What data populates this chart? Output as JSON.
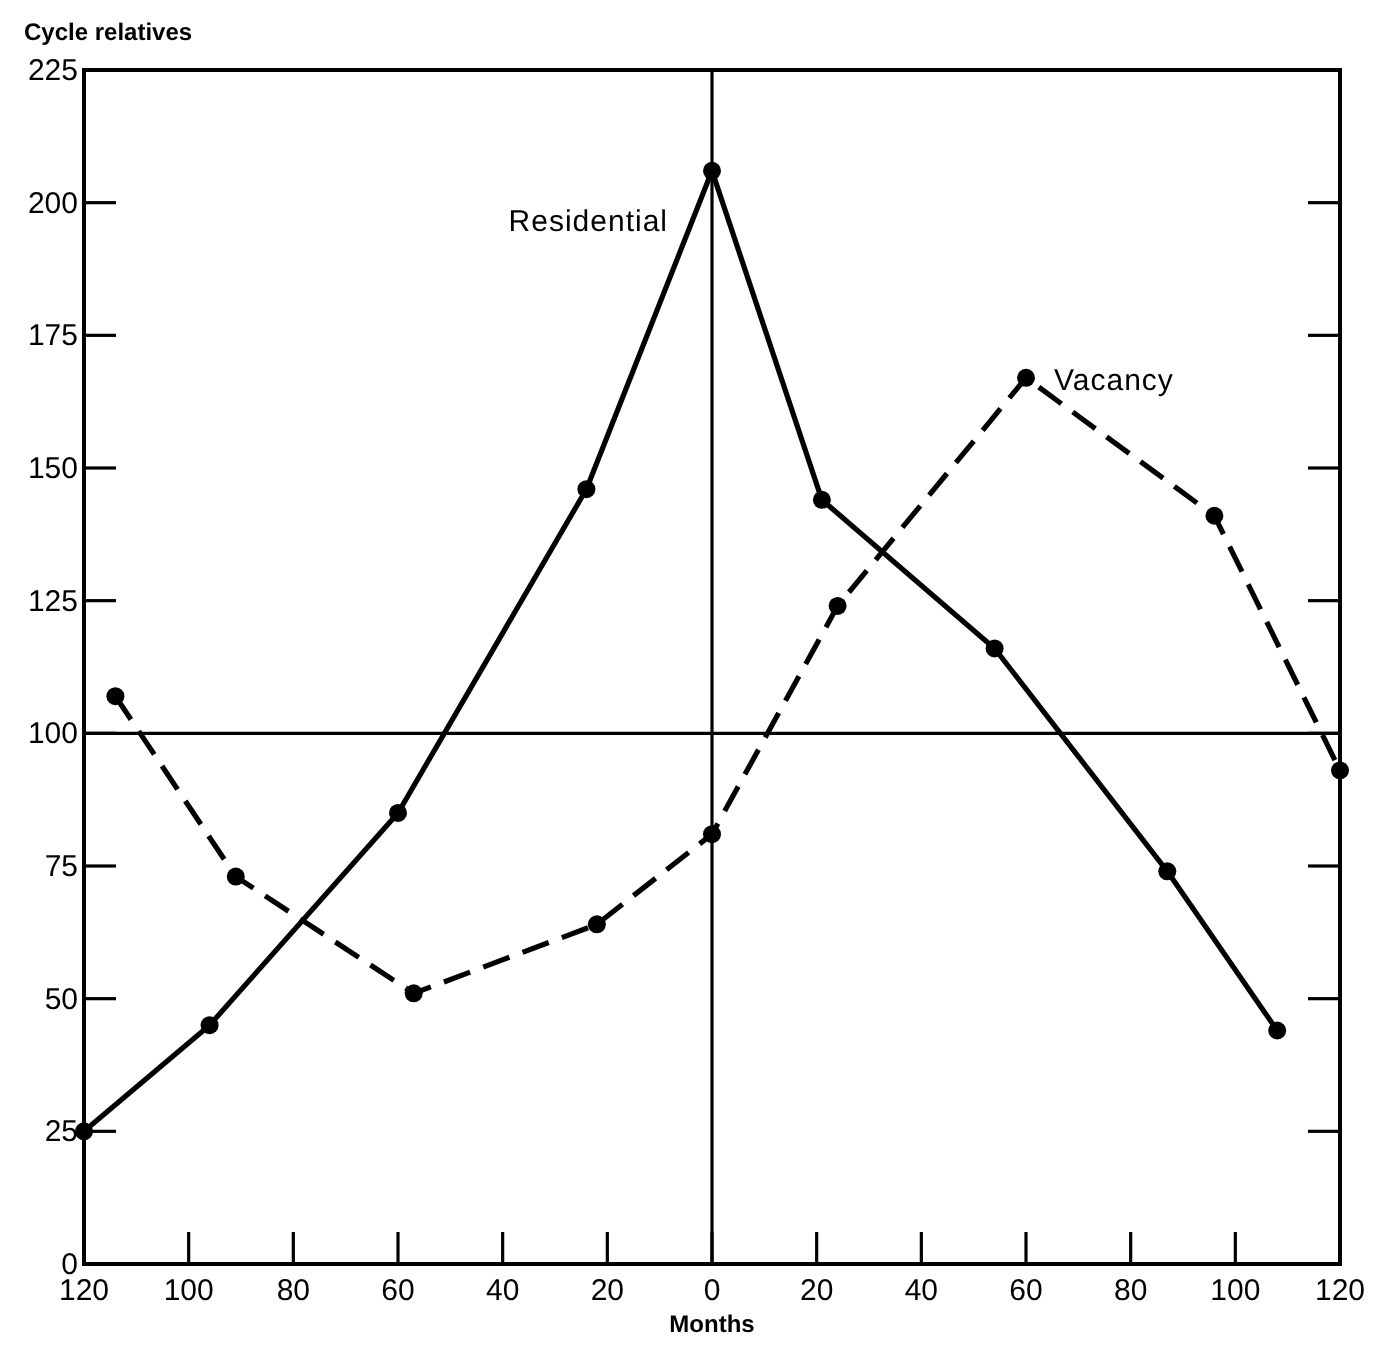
{
  "chart_data": {
    "type": "line",
    "xlabel": "Months",
    "ylabel": "Cycle relatives",
    "xlim": [
      -120,
      120
    ],
    "xticks": [
      {
        "value": -120,
        "label": "120"
      },
      {
        "value": -100,
        "label": "100"
      },
      {
        "value": -80,
        "label": "80"
      },
      {
        "value": -60,
        "label": "60"
      },
      {
        "value": -40,
        "label": "40"
      },
      {
        "value": -20,
        "label": "20"
      },
      0,
      20,
      40,
      60,
      80,
      100,
      120
    ],
    "ylim": [
      0,
      225
    ],
    "yticks": [
      0,
      25,
      50,
      75,
      100,
      125,
      150,
      175,
      200,
      225
    ],
    "marker": "circle",
    "series": [
      {
        "name": "Residential",
        "color": "#000000",
        "line_style": "solid",
        "x": [
          -120,
          -96,
          -60,
          -24,
          0,
          21,
          54,
          87,
          108
        ],
        "values": [
          25,
          45,
          85,
          146,
          206,
          144,
          116,
          74,
          44
        ]
      },
      {
        "name": "Vacancy",
        "color": "#000000",
        "line_style": "dashed",
        "x": [
          -114,
          -91,
          -57,
          -22,
          0,
          24,
          60,
          96,
          120
        ],
        "values": [
          107,
          73,
          51,
          64,
          81,
          124,
          167,
          141,
          93
        ]
      }
    ],
    "ref_lines": [
      {
        "axis": "x",
        "value": 0,
        "color": "#000000"
      },
      {
        "axis": "y",
        "value": 100,
        "color": "#000000"
      }
    ]
  }
}
